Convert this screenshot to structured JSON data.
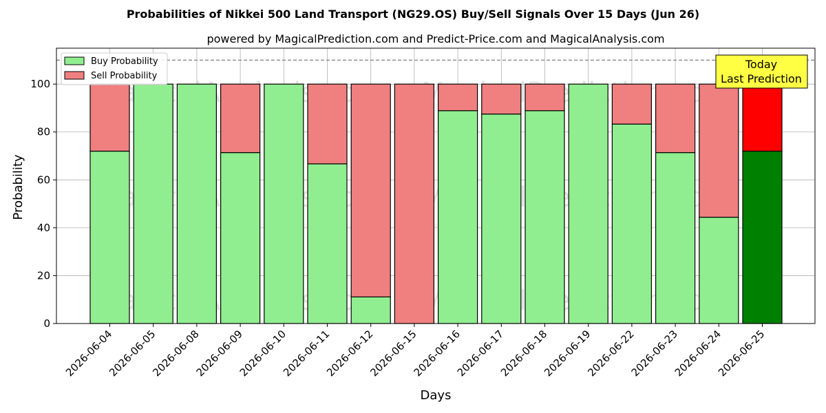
{
  "chart_data": {
    "type": "bar",
    "stacked": true,
    "title": "Probabilities of Nikkei 500 Land Transport (NG29.OS) Buy/Sell Signals Over 15 Days (Jun 26)",
    "subtitle": "powered by MagicalPrediction.com and Predict-Price.com and MagicalAnalysis.com",
    "xlabel": "Days",
    "ylabel": "Probability",
    "ylim": [
      0,
      115
    ],
    "yticks": [
      0,
      20,
      40,
      60,
      80,
      100
    ],
    "grid": true,
    "legend_placement": "top-left",
    "reference_line": {
      "y": 110,
      "style": "dashed"
    },
    "categories": [
      "2026-06-04",
      "2026-06-05",
      "2026-06-08",
      "2026-06-09",
      "2026-06-10",
      "2026-06-11",
      "2026-06-12",
      "2026-06-15",
      "2026-06-16",
      "2026-06-17",
      "2026-06-18",
      "2026-06-19",
      "2026-06-22",
      "2026-06-23",
      "2026-06-24",
      "2026-06-25"
    ],
    "series": [
      {
        "name": "Buy Probability",
        "color": "#90ee90",
        "highlight_color": "#008000",
        "values": [
          72,
          100,
          100,
          71.4,
          100,
          66.7,
          11.1,
          0,
          88.9,
          87.5,
          88.9,
          100,
          83.3,
          71.4,
          44.4,
          72
        ]
      },
      {
        "name": "Sell Probability",
        "color": "#f08080",
        "highlight_color": "#ff0000",
        "values": [
          28,
          0,
          0,
          28.6,
          0,
          33.3,
          88.9,
          100,
          11.1,
          12.5,
          11.1,
          0,
          16.7,
          28.6,
          55.6,
          28
        ]
      }
    ],
    "highlight_index": 15,
    "annotation": {
      "lines": [
        "Today",
        "Last Prediction"
      ],
      "bg_color": "#ffff44"
    },
    "watermarks": [
      "MagicalAnalysis.com",
      "MagicalPrediction.com"
    ]
  }
}
